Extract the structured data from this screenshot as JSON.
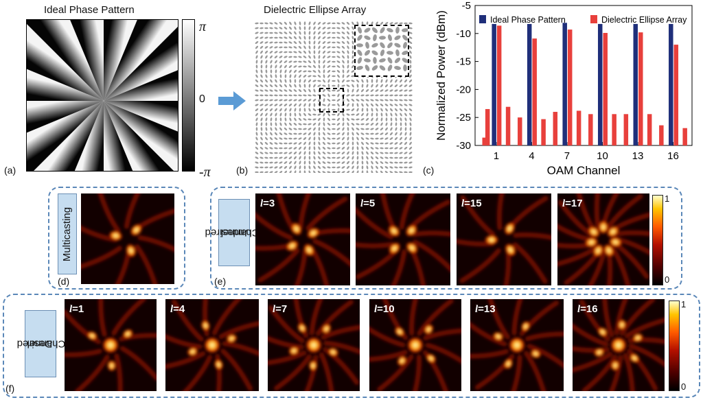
{
  "panel_a": {
    "title": "Ideal Phase Pattern",
    "label": "(a)",
    "colorbar_ticks": [
      "π",
      "0",
      "-π"
    ]
  },
  "panel_b": {
    "title": "Dielectric Ellipse Array",
    "label": "(b)"
  },
  "panel_c": {
    "label": "(c)",
    "chart_data": {
      "type": "bar",
      "xlabel": "OAM Channel",
      "ylabel": "Normalized Power (dBm)",
      "ylim": [
        -30,
        -5
      ],
      "yticks": [
        -5,
        -10,
        -15,
        -20,
        -25,
        -30
      ],
      "x": [
        0,
        1,
        2,
        3,
        4,
        5,
        6,
        7,
        8,
        9,
        10,
        11,
        12,
        13,
        14,
        15,
        16,
        17
      ],
      "xticks": [
        1,
        4,
        7,
        10,
        13,
        16
      ],
      "series": [
        {
          "name": "Ideal Phase Pattern",
          "color": "#1f2f7a",
          "values": [
            null,
            -8.3,
            null,
            null,
            -8.3,
            null,
            null,
            -8.1,
            null,
            null,
            -8.3,
            null,
            null,
            -8.3,
            null,
            null,
            -8.3,
            null
          ]
        },
        {
          "name": "Dielectric Ellipse Array",
          "color": "#e8403c",
          "values": [
            -28.6,
            -8.6,
            -23.1,
            -25,
            -10.9,
            -25.3,
            -24,
            -9.3,
            -23.8,
            -24.4,
            -9.9,
            -24.4,
            -24.4,
            -9.8,
            -24.4,
            -26.4,
            -12,
            -26.9
          ]
        }
      ],
      "extra_bars": [
        {
          "x": 1,
          "value": -23.5,
          "series": "Dielectric Ellipse Array",
          "offset": -1
        }
      ],
      "legend": "top"
    }
  },
  "panel_d": {
    "label": "(d)",
    "side": "Multicasting"
  },
  "panel_e": {
    "label": "(e)",
    "side": [
      "Undesired",
      "Channel"
    ],
    "beams": [
      {
        "l": "l",
        "v": "=3"
      },
      {
        "l": "l",
        "v": "=5"
      },
      {
        "l": "l",
        "v": "=15"
      },
      {
        "l": "l",
        "v": "=17"
      }
    ],
    "colorbar_ticks": [
      "1",
      "0"
    ]
  },
  "panel_f": {
    "label": "(f)",
    "side": [
      "Desired",
      "Channel"
    ],
    "beams": [
      {
        "l": "l",
        "v": "=1"
      },
      {
        "l": "l",
        "v": "=4"
      },
      {
        "l": "l",
        "v": "=7"
      },
      {
        "l": "l",
        "v": "=10"
      },
      {
        "l": "l",
        "v": "=13"
      },
      {
        "l": "l",
        "v": "=16"
      }
    ],
    "colorbar_ticks": [
      "1",
      "0"
    ]
  }
}
